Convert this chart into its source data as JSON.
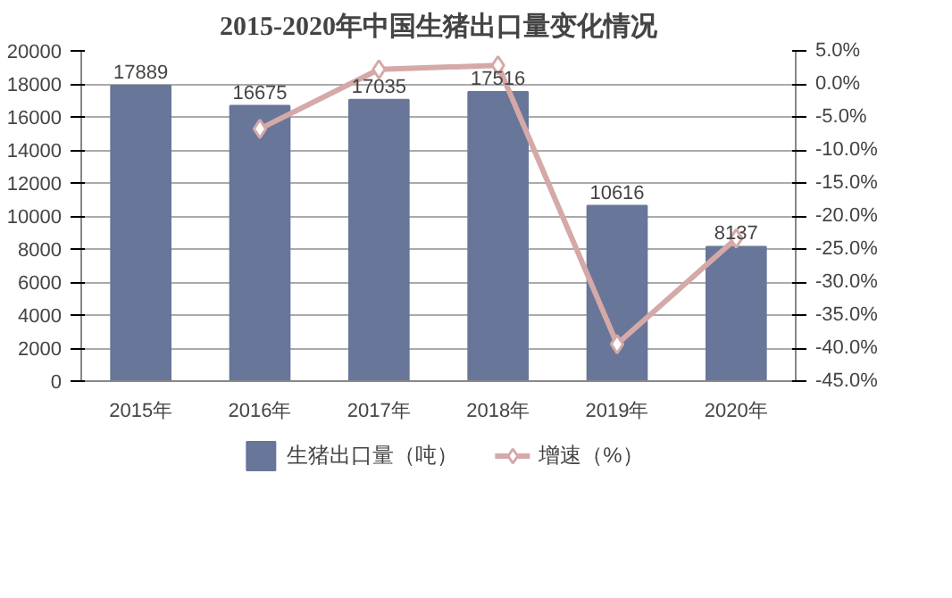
{
  "chart_data": {
    "type": "bar",
    "title": "2015-2020年中国生猪出口量变化情况",
    "categories": [
      "2015年",
      "2016年",
      "2017年",
      "2018年",
      "2019年",
      "2020年"
    ],
    "series": [
      {
        "name": "生猪出口量（吨）",
        "color": "#687699",
        "values": [
          17889,
          16675,
          17035,
          17516,
          10616,
          8137
        ],
        "value_labels": [
          "17889",
          "16675",
          "17035",
          "17516",
          "10616",
          "8137"
        ]
      },
      {
        "name": "增速（%）",
        "type": "line",
        "axis": "y2",
        "color": "#d4a9a8",
        "marker": "diamond",
        "values": [
          null,
          -6.8,
          2.2,
          2.8,
          -39.4,
          -23.4
        ]
      }
    ],
    "ylim": [
      0,
      20000
    ],
    "yticks": [
      0,
      2000,
      4000,
      6000,
      8000,
      10000,
      12000,
      14000,
      16000,
      18000,
      20000
    ],
    "y2lim": [
      -45,
      5
    ],
    "y2ticks": [
      {
        "value": -45,
        "label": "-45.0%"
      },
      {
        "value": -40,
        "label": "-40.0%"
      },
      {
        "value": -35,
        "label": "-35.0%"
      },
      {
        "value": -30,
        "label": "-30.0%"
      },
      {
        "value": -25,
        "label": "-25.0%"
      },
      {
        "value": -20,
        "label": "-20.0%"
      },
      {
        "value": -15,
        "label": "-15.0%"
      },
      {
        "value": -10,
        "label": "-10.0%"
      },
      {
        "value": -5,
        "label": "-5.0%"
      },
      {
        "value": 0,
        "label": "0.0%"
      },
      {
        "value": 5,
        "label": "5.0%"
      }
    ],
    "grid": "y",
    "legend": "bottom"
  }
}
